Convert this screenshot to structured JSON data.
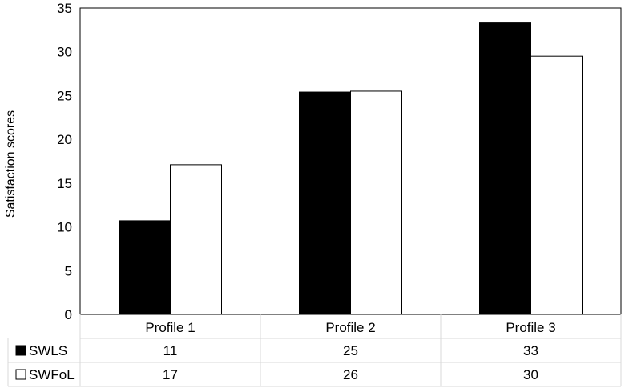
{
  "chart_data": {
    "type": "bar",
    "categories": [
      "Profile 1",
      "Profile 2",
      "Profile 3"
    ],
    "series": [
      {
        "name": "SWLS",
        "values": [
          10.7,
          25.4,
          33.3
        ],
        "color": "#000000",
        "table_values": [
          "11",
          "25",
          "33"
        ]
      },
      {
        "name": "SWFoL",
        "values": [
          17.1,
          25.5,
          29.5
        ],
        "color": "#ffffff",
        "table_values": [
          "17",
          "26",
          "30"
        ]
      }
    ],
    "ylabel": "Satisfaction scores",
    "ylim": [
      0,
      35
    ],
    "yticks": [
      "0",
      "5",
      "10",
      "15",
      "20",
      "25",
      "30",
      "35"
    ],
    "grid": false,
    "legend": "data-table"
  }
}
